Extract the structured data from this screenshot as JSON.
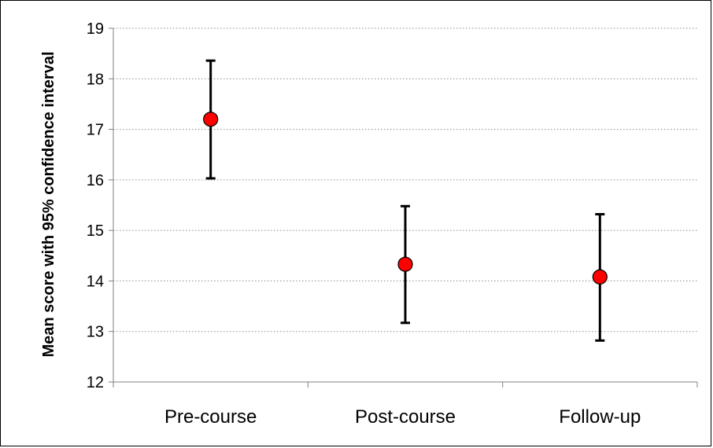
{
  "chart_data": {
    "type": "scatter",
    "title": "",
    "xlabel": "",
    "ylabel": "Mean score with 95% confidence interval",
    "categories": [
      "Pre-course",
      "Post-course",
      "Follow-up"
    ],
    "series": [
      {
        "values": [
          17.2,
          14.33,
          14.08
        ],
        "ci_lower": [
          16.03,
          13.17,
          12.82
        ],
        "ci_upper": [
          18.36,
          15.48,
          15.32
        ]
      }
    ],
    "ylim": [
      12,
      19
    ],
    "yticks": [
      "12",
      "13",
      "14",
      "15",
      "16",
      "17",
      "18",
      "19"
    ],
    "grid": "horizontal-dotted",
    "legend": "none",
    "colors": {
      "marker_fill": "#ff0000",
      "marker_stroke": "#000000",
      "error_bar": "#000000",
      "grid": "#8c8c8c",
      "axis": "#808080"
    }
  }
}
